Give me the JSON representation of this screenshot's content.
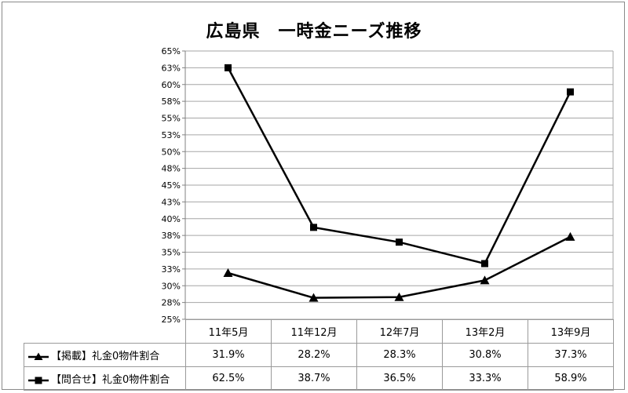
{
  "chart_data": {
    "type": "line",
    "title": "広島県　一時金ニーズ推移",
    "categories": [
      "11年5月",
      "11年12月",
      "12年7月",
      "13年2月",
      "13年9月"
    ],
    "y_tick_labels": [
      "25%",
      "28%",
      "30%",
      "33%",
      "35%",
      "38%",
      "40%",
      "43%",
      "45%",
      "48%",
      "50%",
      "53%",
      "55%",
      "58%",
      "60%",
      "63%",
      "65%"
    ],
    "ylim": [
      25,
      65
    ],
    "grid": true,
    "legend": "data-table",
    "series": [
      {
        "name": "【掲載】礼金0物件割合",
        "marker": "triangle",
        "color": "#000000",
        "values": [
          31.9,
          28.2,
          28.3,
          30.8,
          37.3
        ],
        "labels": [
          "31.9%",
          "28.2%",
          "28.3%",
          "30.8%",
          "37.3%"
        ]
      },
      {
        "name": "【問合せ】礼金0物件割合",
        "marker": "square",
        "color": "#000000",
        "values": [
          62.5,
          38.7,
          36.5,
          33.3,
          58.9
        ],
        "labels": [
          "62.5%",
          "38.7%",
          "36.5%",
          "33.3%",
          "58.9%"
        ]
      }
    ]
  }
}
